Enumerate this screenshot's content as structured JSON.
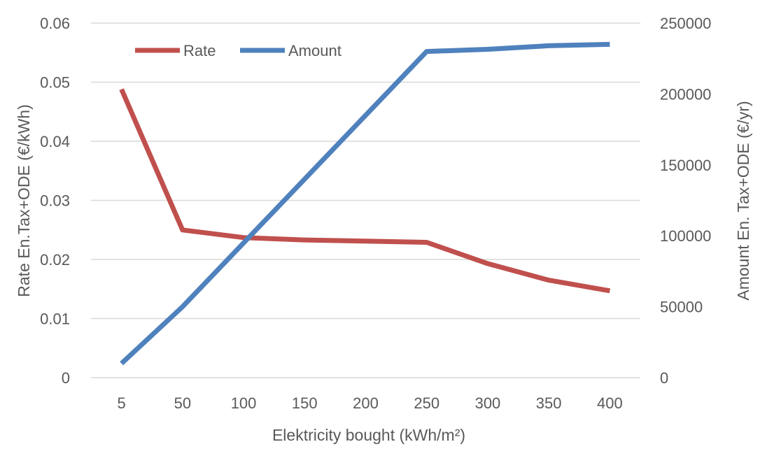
{
  "chart_data": {
    "type": "line",
    "title": "",
    "xlabel": "Elektricity bought (kWh/m²)",
    "ylabel_left": "Rate En.Tax+ODE (€/kWh)",
    "ylabel_right": "Amount En. Tax+ODE (€/yr)",
    "categories": [
      "5",
      "50",
      "100",
      "150",
      "200",
      "250",
      "300",
      "350",
      "400"
    ],
    "ylim_left": [
      0,
      0.06
    ],
    "ylim_right": [
      0,
      250000
    ],
    "left_ticks": [
      "0",
      "0.01",
      "0.02",
      "0.03",
      "0.04",
      "0.05",
      "0.06"
    ],
    "right_ticks": [
      "0",
      "50000",
      "100000",
      "150000",
      "200000",
      "250000"
    ],
    "grid": true,
    "legend_position": "top-left",
    "series": [
      {
        "name": "Rate",
        "axis": "left",
        "color": "#c0504d",
        "values": [
          0.0488,
          0.025,
          0.0237,
          0.0233,
          0.0231,
          0.0229,
          0.0193,
          0.0165,
          0.0147
        ]
      },
      {
        "name": "Amount",
        "axis": "right",
        "color": "#4f81bd",
        "values": [
          10000,
          50000,
          95000,
          140000,
          185000,
          230000,
          231500,
          234000,
          235000
        ]
      }
    ]
  }
}
